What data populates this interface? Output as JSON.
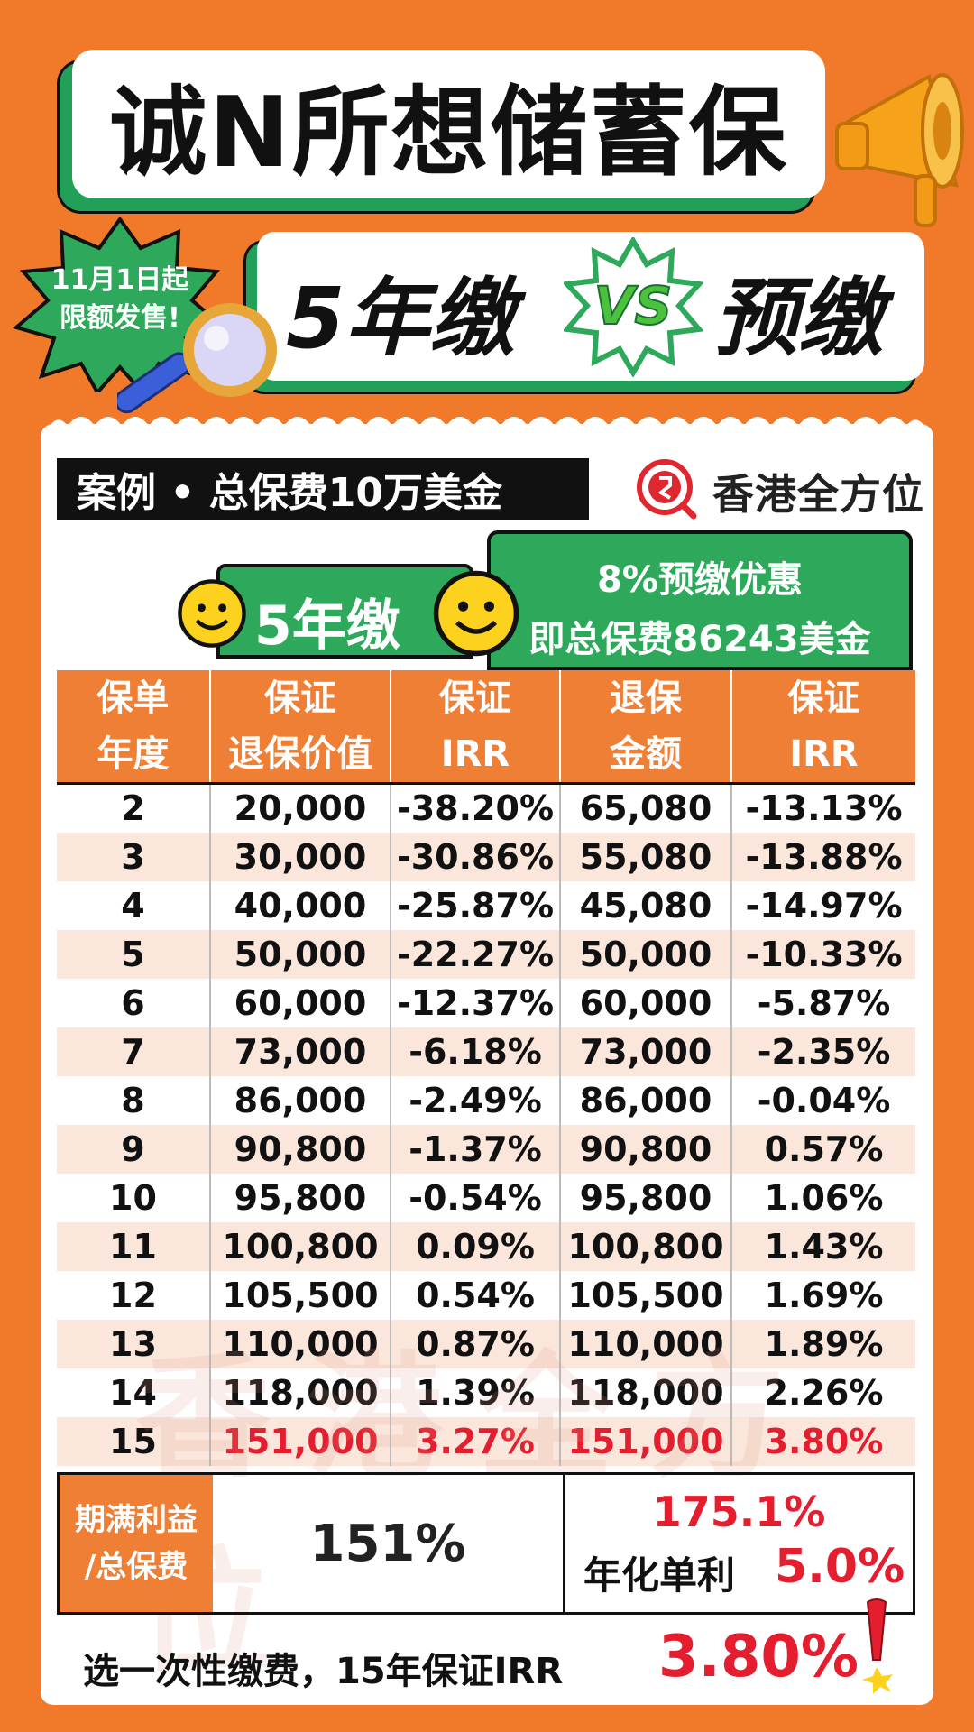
{
  "header": {
    "title": "诚N所想储蓄保",
    "badge_line1": "11月1日起",
    "badge_line2": "限额发售!",
    "sub_left": "5年缴",
    "sub_vs": "VS",
    "sub_right": "预缴"
  },
  "card": {
    "case_label": "案例 • 总保费10万美金",
    "logo_text": "香港全方位",
    "tab_5yr": "5年缴",
    "tab_pre_line1": "8%预缴优惠",
    "tab_pre_line2": "即总保费86243美金"
  },
  "table": {
    "headers": [
      [
        "保单",
        "年度"
      ],
      [
        "保证",
        "退保价值"
      ],
      [
        "保证",
        "IRR"
      ],
      [
        "退保",
        "金额"
      ],
      [
        "保证",
        "IRR"
      ]
    ],
    "rows": [
      [
        "2",
        "20,000",
        "-38.20%",
        "65,080",
        "-13.13%"
      ],
      [
        "3",
        "30,000",
        "-30.86%",
        "55,080",
        "-13.88%"
      ],
      [
        "4",
        "40,000",
        "-25.87%",
        "45,080",
        "-14.97%"
      ],
      [
        "5",
        "50,000",
        "-22.27%",
        "50,000",
        "-10.33%"
      ],
      [
        "6",
        "60,000",
        "-12.37%",
        "60,000",
        "-5.87%"
      ],
      [
        "7",
        "73,000",
        "-6.18%",
        "73,000",
        "-2.35%"
      ],
      [
        "8",
        "86,000",
        "-2.49%",
        "86,000",
        "-0.04%"
      ],
      [
        "9",
        "90,800",
        "-1.37%",
        "90,800",
        "0.57%"
      ],
      [
        "10",
        "95,800",
        "-0.54%",
        "95,800",
        "1.06%"
      ],
      [
        "11",
        "100,800",
        "0.09%",
        "100,800",
        "1.43%"
      ],
      [
        "12",
        "105,500",
        "0.54%",
        "105,500",
        "1.69%"
      ],
      [
        "13",
        "110,000",
        "0.87%",
        "110,000",
        "1.89%"
      ],
      [
        "14",
        "118,000",
        "1.39%",
        "118,000",
        "2.26%"
      ],
      [
        "15",
        "151,000",
        "3.27%",
        "151,000",
        "3.80%"
      ]
    ]
  },
  "summary": {
    "label_line1": "期满利益",
    "label_line2": "/总保费",
    "left_value": "151%",
    "right_value": "175.1%",
    "right_label": "年化单利",
    "right_rate": "5.0%"
  },
  "footer": {
    "text": "选一次性缴费，15年保证IRR",
    "value": "3.80%"
  },
  "colors": {
    "background": "#f07a2a",
    "green": "#2ea95c",
    "header_orange": "#ef7f35",
    "highlight_red": "#e41e2f"
  }
}
